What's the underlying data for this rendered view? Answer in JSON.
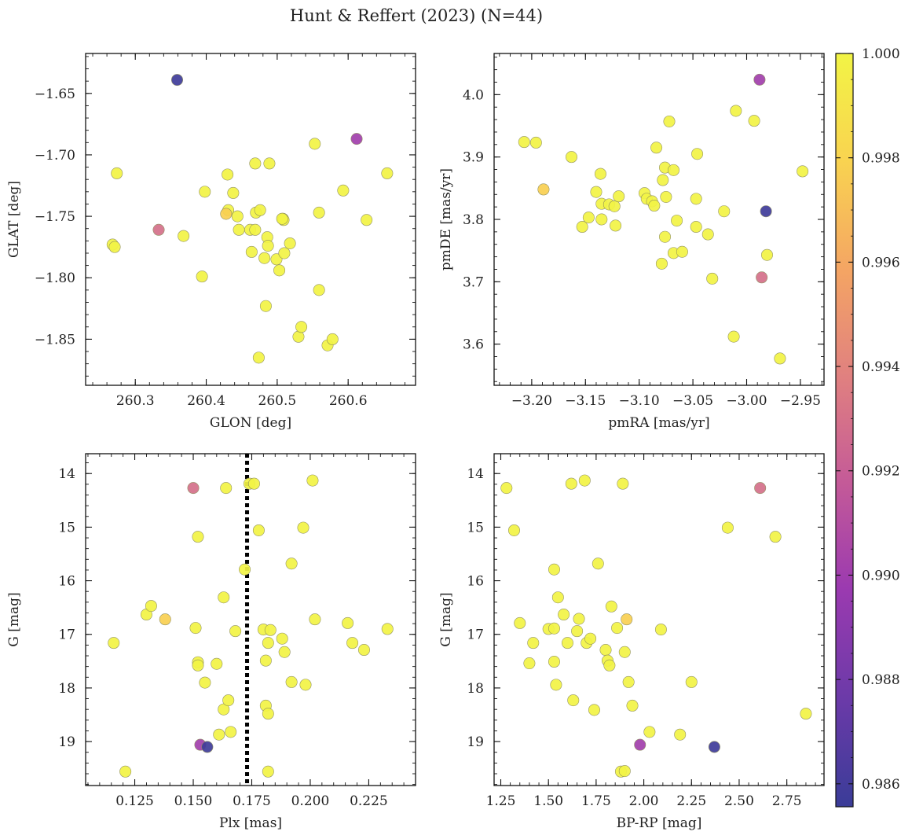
{
  "title": "Hunt & Reffert (2023) (N=44)",
  "colorbar": {
    "vmin": 0.98556,
    "vmax": 1.0,
    "ticks": [
      0.986,
      0.988,
      0.99,
      0.992,
      0.994,
      0.996,
      0.998,
      1.0
    ],
    "tick_labels": [
      "0.986",
      "0.988",
      "0.990",
      "0.992",
      "0.994",
      "0.996",
      "0.998",
      "1.000"
    ],
    "colormap": [
      "#3a3c98",
      "#6a3aa8",
      "#9b3ab0",
      "#c45a98",
      "#e08080",
      "#f4a464",
      "#f9d450",
      "#f2f445"
    ]
  },
  "chart_data": [
    {
      "type": "scatter",
      "xlabel": "GLON [deg]",
      "ylabel": "GLAT [deg]",
      "xlim": [
        260.23,
        260.695
      ],
      "ylim": [
        -1.8875,
        -1.6175
      ],
      "y_inverted": false,
      "xticks": [
        260.3,
        260.4,
        260.5,
        260.6
      ],
      "xtick_labels": [
        "260.3",
        "260.4",
        "260.5",
        "260.6"
      ],
      "yticks": [
        -1.65,
        -1.7,
        -1.75,
        -1.8,
        -1.85
      ],
      "ytick_labels": [
        "−1.65",
        "−1.70",
        "−1.75",
        "−1.80",
        "−1.85"
      ],
      "points": [
        {
          "x": 260.359,
          "y": -1.639,
          "c": 0.98581
        },
        {
          "x": 260.612,
          "y": -1.687,
          "c": 0.98999
        },
        {
          "x": 260.333,
          "y": -1.761,
          "c": 0.99296
        },
        {
          "x": 260.428,
          "y": -1.748,
          "c": 0.99776
        },
        {
          "x": 260.274,
          "y": -1.715,
          "c": 1.0
        },
        {
          "x": 260.268,
          "y": -1.773,
          "c": 1.0
        },
        {
          "x": 260.271,
          "y": -1.775,
          "c": 1.0
        },
        {
          "x": 260.368,
          "y": -1.766,
          "c": 1.0
        },
        {
          "x": 260.394,
          "y": -1.799,
          "c": 1.0
        },
        {
          "x": 260.398,
          "y": -1.73,
          "c": 1.0
        },
        {
          "x": 260.43,
          "y": -1.716,
          "c": 1.0
        },
        {
          "x": 260.431,
          "y": -1.745,
          "c": 1.0
        },
        {
          "x": 260.438,
          "y": -1.731,
          "c": 1.0
        },
        {
          "x": 260.444,
          "y": -1.75,
          "c": 1.0
        },
        {
          "x": 260.446,
          "y": -1.761,
          "c": 1.0
        },
        {
          "x": 260.462,
          "y": -1.761,
          "c": 1.0
        },
        {
          "x": 260.464,
          "y": -1.779,
          "c": 1.0
        },
        {
          "x": 260.469,
          "y": -1.761,
          "c": 1.0
        },
        {
          "x": 260.469,
          "y": -1.707,
          "c": 1.0
        },
        {
          "x": 260.47,
          "y": -1.747,
          "c": 1.0
        },
        {
          "x": 260.476,
          "y": -1.745,
          "c": 1.0
        },
        {
          "x": 260.474,
          "y": -1.865,
          "c": 1.0
        },
        {
          "x": 260.482,
          "y": -1.784,
          "c": 1.0
        },
        {
          "x": 260.484,
          "y": -1.823,
          "c": 1.0
        },
        {
          "x": 260.486,
          "y": -1.767,
          "c": 1.0
        },
        {
          "x": 260.487,
          "y": -1.774,
          "c": 1.0
        },
        {
          "x": 260.489,
          "y": -1.707,
          "c": 1.0
        },
        {
          "x": 260.499,
          "y": -1.785,
          "c": 1.0
        },
        {
          "x": 260.503,
          "y": -1.794,
          "c": 1.0
        },
        {
          "x": 260.508,
          "y": -1.752,
          "c": 1.0
        },
        {
          "x": 260.509,
          "y": -1.753,
          "c": 1.0
        },
        {
          "x": 260.51,
          "y": -1.78,
          "c": 1.0
        },
        {
          "x": 260.518,
          "y": -1.772,
          "c": 1.0
        },
        {
          "x": 260.53,
          "y": -1.848,
          "c": 1.0
        },
        {
          "x": 260.534,
          "y": -1.84,
          "c": 1.0
        },
        {
          "x": 260.553,
          "y": -1.691,
          "c": 1.0
        },
        {
          "x": 260.559,
          "y": -1.747,
          "c": 1.0
        },
        {
          "x": 260.559,
          "y": -1.81,
          "c": 1.0
        },
        {
          "x": 260.571,
          "y": -1.855,
          "c": 1.0
        },
        {
          "x": 260.578,
          "y": -1.85,
          "c": 1.0
        },
        {
          "x": 260.593,
          "y": -1.729,
          "c": 1.0
        },
        {
          "x": 260.626,
          "y": -1.753,
          "c": 1.0
        },
        {
          "x": 260.655,
          "y": -1.715,
          "c": 1.0
        },
        {
          "x": 260.507,
          "y": -1.752,
          "c": 1.0
        }
      ]
    },
    {
      "type": "scatter",
      "xlabel": "pmRA [mas/yr]",
      "ylabel": "pmDE [mas/yr]",
      "xlim": [
        -3.235,
        -2.928
      ],
      "ylim": [
        3.534,
        4.066
      ],
      "y_inverted": false,
      "xticks": [
        -3.2,
        -3.15,
        -3.1,
        -3.05,
        -3.0,
        -2.95
      ],
      "xtick_labels": [
        "−3.20",
        "−3.15",
        "−3.10",
        "−3.05",
        "−3.00",
        "−2.95"
      ],
      "yticks": [
        3.6,
        3.7,
        3.8,
        3.9,
        4.0
      ],
      "ytick_labels": [
        "3.6",
        "3.7",
        "3.8",
        "3.9",
        "4.0"
      ],
      "points": [
        {
          "x": -2.988,
          "y": 4.024,
          "c": 0.98999
        },
        {
          "x": -2.982,
          "y": 3.813,
          "c": 0.98581
        },
        {
          "x": -2.986,
          "y": 3.707,
          "c": 0.99296
        },
        {
          "x": -3.189,
          "y": 3.848,
          "c": 0.99776
        },
        {
          "x": -3.207,
          "y": 3.924,
          "c": 1.0
        },
        {
          "x": -3.196,
          "y": 3.923,
          "c": 1.0
        },
        {
          "x": -3.163,
          "y": 3.9,
          "c": 1.0
        },
        {
          "x": -3.136,
          "y": 3.873,
          "c": 1.0
        },
        {
          "x": -3.14,
          "y": 3.844,
          "c": 1.0
        },
        {
          "x": -3.135,
          "y": 3.825,
          "c": 1.0
        },
        {
          "x": -3.128,
          "y": 3.824,
          "c": 1.0
        },
        {
          "x": -3.123,
          "y": 3.821,
          "c": 1.0
        },
        {
          "x": -3.119,
          "y": 3.837,
          "c": 1.0
        },
        {
          "x": -3.147,
          "y": 3.803,
          "c": 1.0
        },
        {
          "x": -3.135,
          "y": 3.8,
          "c": 1.0
        },
        {
          "x": -3.153,
          "y": 3.788,
          "c": 1.0
        },
        {
          "x": -3.122,
          "y": 3.79,
          "c": 1.0
        },
        {
          "x": -3.095,
          "y": 3.842,
          "c": 1.0
        },
        {
          "x": -3.093,
          "y": 3.833,
          "c": 1.0
        },
        {
          "x": -3.088,
          "y": 3.829,
          "c": 1.0
        },
        {
          "x": -3.086,
          "y": 3.822,
          "c": 1.0
        },
        {
          "x": -3.084,
          "y": 3.915,
          "c": 1.0
        },
        {
          "x": -3.078,
          "y": 3.863,
          "c": 1.0
        },
        {
          "x": -3.076,
          "y": 3.883,
          "c": 1.0
        },
        {
          "x": -3.075,
          "y": 3.836,
          "c": 1.0
        },
        {
          "x": -3.076,
          "y": 3.772,
          "c": 1.0
        },
        {
          "x": -3.079,
          "y": 3.729,
          "c": 1.0
        },
        {
          "x": -3.072,
          "y": 3.957,
          "c": 1.0
        },
        {
          "x": -3.068,
          "y": 3.879,
          "c": 1.0
        },
        {
          "x": -3.065,
          "y": 3.798,
          "c": 1.0
        },
        {
          "x": -3.068,
          "y": 3.746,
          "c": 1.0
        },
        {
          "x": -3.06,
          "y": 3.748,
          "c": 1.0
        },
        {
          "x": -3.046,
          "y": 3.905,
          "c": 1.0
        },
        {
          "x": -3.047,
          "y": 3.833,
          "c": 1.0
        },
        {
          "x": -3.047,
          "y": 3.788,
          "c": 1.0
        },
        {
          "x": -3.036,
          "y": 3.776,
          "c": 1.0
        },
        {
          "x": -3.032,
          "y": 3.705,
          "c": 1.0
        },
        {
          "x": -3.021,
          "y": 3.813,
          "c": 1.0
        },
        {
          "x": -3.012,
          "y": 3.612,
          "c": 1.0
        },
        {
          "x": -3.01,
          "y": 3.974,
          "c": 1.0
        },
        {
          "x": -2.993,
          "y": 3.958,
          "c": 1.0
        },
        {
          "x": -2.981,
          "y": 3.743,
          "c": 1.0
        },
        {
          "x": -2.969,
          "y": 3.577,
          "c": 1.0
        },
        {
          "x": -2.948,
          "y": 3.877,
          "c": 1.0
        }
      ]
    },
    {
      "type": "scatter",
      "xlabel": "Plx [mas]",
      "ylabel": "G [mag]",
      "xlim": [
        0.104,
        0.245
      ],
      "ylim": [
        19.82,
        13.63
      ],
      "y_inverted": true,
      "vline": {
        "x": 0.173,
        "style": "dotted"
      },
      "xticks": [
        0.125,
        0.15,
        0.175,
        0.2,
        0.225
      ],
      "xtick_labels": [
        "0.125",
        "0.150",
        "0.175",
        "0.200",
        "0.225"
      ],
      "yticks": [
        14,
        15,
        16,
        17,
        18,
        19
      ],
      "ytick_labels": [
        "14",
        "15",
        "16",
        "17",
        "18",
        "19"
      ],
      "points": [
        {
          "x": 0.15,
          "y": 14.27,
          "c": 0.99296
        },
        {
          "x": 0.153,
          "y": 19.06,
          "c": 0.98999
        },
        {
          "x": 0.156,
          "y": 19.1,
          "c": 0.98581
        },
        {
          "x": 0.138,
          "y": 16.72,
          "c": 0.99776
        },
        {
          "x": 0.116,
          "y": 17.16,
          "c": 1.0
        },
        {
          "x": 0.121,
          "y": 19.56,
          "c": 1.0
        },
        {
          "x": 0.13,
          "y": 16.63,
          "c": 1.0
        },
        {
          "x": 0.132,
          "y": 16.47,
          "c": 1.0
        },
        {
          "x": 0.151,
          "y": 16.88,
          "c": 1.0
        },
        {
          "x": 0.152,
          "y": 15.18,
          "c": 1.0
        },
        {
          "x": 0.152,
          "y": 17.52,
          "c": 1.0
        },
        {
          "x": 0.152,
          "y": 17.58,
          "c": 1.0
        },
        {
          "x": 0.155,
          "y": 17.9,
          "c": 1.0
        },
        {
          "x": 0.16,
          "y": 17.55,
          "c": 1.0
        },
        {
          "x": 0.161,
          "y": 18.87,
          "c": 1.0
        },
        {
          "x": 0.163,
          "y": 18.4,
          "c": 1.0
        },
        {
          "x": 0.164,
          "y": 14.27,
          "c": 1.0
        },
        {
          "x": 0.163,
          "y": 16.31,
          "c": 1.0
        },
        {
          "x": 0.165,
          "y": 18.23,
          "c": 1.0
        },
        {
          "x": 0.166,
          "y": 18.82,
          "c": 1.0
        },
        {
          "x": 0.168,
          "y": 16.94,
          "c": 1.0
        },
        {
          "x": 0.172,
          "y": 15.79,
          "c": 1.0
        },
        {
          "x": 0.174,
          "y": 14.19,
          "c": 1.0
        },
        {
          "x": 0.176,
          "y": 14.19,
          "c": 1.0
        },
        {
          "x": 0.178,
          "y": 15.06,
          "c": 1.0
        },
        {
          "x": 0.18,
          "y": 16.91,
          "c": 1.0
        },
        {
          "x": 0.181,
          "y": 17.49,
          "c": 1.0
        },
        {
          "x": 0.181,
          "y": 18.33,
          "c": 1.0
        },
        {
          "x": 0.182,
          "y": 17.16,
          "c": 1.0
        },
        {
          "x": 0.182,
          "y": 18.48,
          "c": 1.0
        },
        {
          "x": 0.182,
          "y": 19.56,
          "c": 1.0
        },
        {
          "x": 0.183,
          "y": 16.92,
          "c": 1.0
        },
        {
          "x": 0.188,
          "y": 17.08,
          "c": 1.0
        },
        {
          "x": 0.189,
          "y": 17.33,
          "c": 1.0
        },
        {
          "x": 0.192,
          "y": 15.68,
          "c": 1.0
        },
        {
          "x": 0.192,
          "y": 17.89,
          "c": 1.0
        },
        {
          "x": 0.197,
          "y": 15.01,
          "c": 1.0
        },
        {
          "x": 0.198,
          "y": 17.94,
          "c": 1.0
        },
        {
          "x": 0.201,
          "y": 14.13,
          "c": 1.0
        },
        {
          "x": 0.202,
          "y": 16.72,
          "c": 1.0
        },
        {
          "x": 0.216,
          "y": 16.79,
          "c": 1.0
        },
        {
          "x": 0.218,
          "y": 17.16,
          "c": 1.0
        },
        {
          "x": 0.223,
          "y": 17.29,
          "c": 1.0
        },
        {
          "x": 0.233,
          "y": 16.9,
          "c": 1.0
        }
      ]
    },
    {
      "type": "scatter",
      "xlabel": "BP-RP [mag]",
      "ylabel": "G [mag]",
      "xlim": [
        1.215,
        2.945
      ],
      "ylim": [
        19.82,
        13.63
      ],
      "y_inverted": true,
      "xticks": [
        1.25,
        1.5,
        1.75,
        2.0,
        2.25,
        2.5,
        2.75
      ],
      "xtick_labels": [
        "1.25",
        "1.50",
        "1.75",
        "2.00",
        "2.25",
        "2.50",
        "2.75"
      ],
      "yticks": [
        14,
        15,
        16,
        17,
        18,
        19
      ],
      "ytick_labels": [
        "14",
        "15",
        "16",
        "17",
        "18",
        "19"
      ],
      "points": [
        {
          "x": 2.61,
          "y": 14.27,
          "c": 0.99296
        },
        {
          "x": 1.98,
          "y": 19.06,
          "c": 0.98999
        },
        {
          "x": 2.37,
          "y": 19.1,
          "c": 0.98581
        },
        {
          "x": 1.91,
          "y": 16.72,
          "c": 0.99776
        },
        {
          "x": 1.28,
          "y": 14.27,
          "c": 1.0
        },
        {
          "x": 1.32,
          "y": 15.06,
          "c": 1.0
        },
        {
          "x": 1.35,
          "y": 16.79,
          "c": 1.0
        },
        {
          "x": 1.4,
          "y": 17.54,
          "c": 1.0
        },
        {
          "x": 1.42,
          "y": 17.16,
          "c": 1.0
        },
        {
          "x": 1.5,
          "y": 16.9,
          "c": 1.0
        },
        {
          "x": 1.53,
          "y": 16.89,
          "c": 1.0
        },
        {
          "x": 1.53,
          "y": 15.79,
          "c": 1.0
        },
        {
          "x": 1.53,
          "y": 17.51,
          "c": 1.0
        },
        {
          "x": 1.54,
          "y": 17.94,
          "c": 1.0
        },
        {
          "x": 1.55,
          "y": 16.31,
          "c": 1.0
        },
        {
          "x": 1.58,
          "y": 16.63,
          "c": 1.0
        },
        {
          "x": 1.6,
          "y": 17.16,
          "c": 1.0
        },
        {
          "x": 1.62,
          "y": 14.19,
          "c": 1.0
        },
        {
          "x": 1.63,
          "y": 18.23,
          "c": 1.0
        },
        {
          "x": 1.65,
          "y": 16.94,
          "c": 1.0
        },
        {
          "x": 1.66,
          "y": 16.71,
          "c": 1.0
        },
        {
          "x": 1.69,
          "y": 14.13,
          "c": 1.0
        },
        {
          "x": 1.7,
          "y": 17.16,
          "c": 1.0
        },
        {
          "x": 1.72,
          "y": 17.08,
          "c": 1.0
        },
        {
          "x": 1.74,
          "y": 18.41,
          "c": 1.0
        },
        {
          "x": 1.76,
          "y": 15.68,
          "c": 1.0
        },
        {
          "x": 1.8,
          "y": 17.29,
          "c": 1.0
        },
        {
          "x": 1.81,
          "y": 17.49,
          "c": 1.0
        },
        {
          "x": 1.82,
          "y": 17.58,
          "c": 1.0
        },
        {
          "x": 1.83,
          "y": 16.48,
          "c": 1.0
        },
        {
          "x": 1.86,
          "y": 16.88,
          "c": 1.0
        },
        {
          "x": 1.88,
          "y": 19.56,
          "c": 1.0
        },
        {
          "x": 1.89,
          "y": 14.19,
          "c": 1.0
        },
        {
          "x": 1.9,
          "y": 17.33,
          "c": 1.0
        },
        {
          "x": 1.9,
          "y": 19.55,
          "c": 1.0
        },
        {
          "x": 1.92,
          "y": 17.89,
          "c": 1.0
        },
        {
          "x": 1.94,
          "y": 18.33,
          "c": 1.0
        },
        {
          "x": 2.03,
          "y": 18.82,
          "c": 1.0
        },
        {
          "x": 2.09,
          "y": 16.91,
          "c": 1.0
        },
        {
          "x": 2.19,
          "y": 18.87,
          "c": 1.0
        },
        {
          "x": 2.25,
          "y": 17.89,
          "c": 1.0
        },
        {
          "x": 2.44,
          "y": 15.01,
          "c": 1.0
        },
        {
          "x": 2.69,
          "y": 15.18,
          "c": 1.0
        },
        {
          "x": 2.85,
          "y": 18.48,
          "c": 1.0
        }
      ]
    }
  ]
}
